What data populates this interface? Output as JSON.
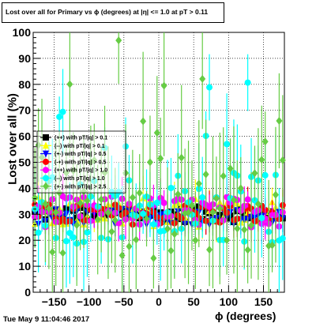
{
  "chart_data": {
    "type": "scatter",
    "title": "Lost over all for Primary vs ϕ (degrees) at |η| <= 1.0 at pT > 0.11",
    "xlabel": "ϕ (degrees)",
    "ylabel": "Lost over all (%)",
    "xlim": [
      -180,
      180
    ],
    "ylim": [
      0,
      100
    ],
    "xticks": [
      -150,
      -100,
      -50,
      0,
      50,
      100,
      150
    ],
    "yticks": [
      0,
      10,
      20,
      30,
      40,
      50,
      60,
      70,
      80,
      90,
      100
    ],
    "grid": true,
    "legend_position": "left-middle",
    "bins": 72,
    "series": [
      {
        "name": "(++) with pT/|q| > 0.1",
        "color": "#000000",
        "marker": "square",
        "base": 30,
        "spread": 3,
        "err": 4
      },
      {
        "name": "(--) with pT/|q| > 0.1",
        "color": "#ffff00",
        "marker": "triangle-up",
        "base": 31,
        "spread": 6,
        "err": 6
      },
      {
        "name": "(+-) with pT/|q| > 0.5",
        "color": "#0000ff",
        "marker": "triangle-down",
        "base": 29,
        "spread": 3,
        "err": 4
      },
      {
        "name": "(-+) with pT/|q| > 0.5",
        "color": "#ff0000",
        "marker": "circle",
        "base": 30,
        "spread": 4,
        "err": 5
      },
      {
        "name": "(++) with pT/|q| > 1.0",
        "color": "#ff00ff",
        "marker": "circle",
        "base": 31,
        "spread": 6,
        "err": 6
      },
      {
        "name": "(--) with pT/|q| > 1.0",
        "color": "#00ffff",
        "marker": "circle",
        "base": 32,
        "spread": 14,
        "err": 14
      },
      {
        "name": "(+-) with pT/|q| > 2.5",
        "color": "#66cc44",
        "marker": "diamond",
        "base": 33,
        "spread": 20,
        "err": 20
      }
    ]
  },
  "footer": {
    "datestamp": "Tue May  9 11:04:46 2017"
  }
}
